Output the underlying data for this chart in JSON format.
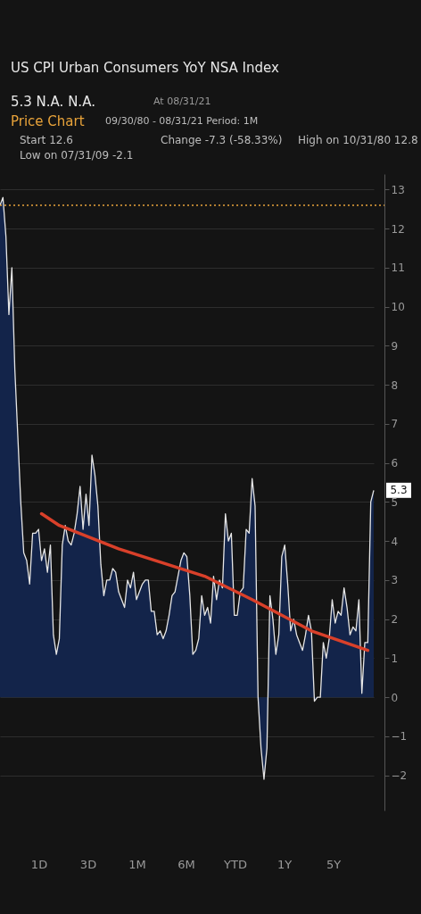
{
  "chart_data": {
    "type": "area",
    "title": "US CPI Urban Consumers YoY NSA Index",
    "subtitle": "5.3   N.A.   N.A.",
    "annotations": [
      "At 08/31/21",
      "Price Chart",
      "09/30/80 - 08/31/21   Period: 1M",
      "Start  12.6",
      "Change  -7.3 (-58.33%)",
      "High on 10/31/80  12.8",
      "Low on 07/31/09  -2.1",
      "5.3",
      "1D",
      "3D",
      "1M",
      "6M",
      "YTD",
      "1Y",
      "5Y"
    ],
    "categories": [
      null,
      null,
      null,
      null,
      null,
      null,
      null,
      null,
      null,
      null,
      null,
      null,
      null,
      null,
      null,
      null,
      null,
      null,
      null,
      null,
      null,
      null,
      null,
      null,
      null,
      null,
      null,
      null,
      null,
      null,
      null,
      null,
      null,
      null,
      null,
      null,
      null,
      null,
      null,
      null,
      null,
      null,
      null,
      null,
      null,
      null,
      null,
      null,
      null,
      null,
      null,
      null,
      null,
      null,
      null,
      null,
      null,
      null,
      null,
      null,
      null,
      null,
      null,
      null,
      null,
      null,
      null,
      null,
      null,
      null,
      null,
      null,
      null,
      null,
      null,
      null,
      null,
      null,
      null,
      null,
      null,
      null,
      null,
      null,
      null,
      null,
      null,
      null,
      null,
      null,
      null,
      null,
      null,
      null,
      null,
      null,
      null,
      null,
      null,
      null,
      null,
      null,
      null,
      null,
      null,
      null,
      null,
      null,
      null,
      null,
      null,
      null,
      null,
      null,
      null,
      null,
      null,
      null,
      null,
      null,
      null,
      null,
      null,
      null,
      null,
      null,
      null
    ],
    "series": [
      {
        "type": "area",
        "color": "#13244a",
        "values": [
          12.6,
          12.8,
          11.8,
          9.8,
          11.0,
          8.4,
          6.7,
          5.0,
          3.7,
          3.5,
          2.9,
          4.2,
          4.2,
          4.3,
          3.5,
          3.8,
          3.2,
          3.9,
          1.6,
          1.1,
          1.5,
          3.9,
          4.4,
          4.0,
          3.9,
          4.2,
          4.7,
          5.4,
          4.3,
          5.2,
          4.4,
          6.2,
          5.7,
          4.9,
          3.4,
          2.6,
          3.0,
          3.0,
          3.3,
          3.2,
          2.7,
          2.5,
          2.3,
          3.0,
          2.8,
          3.2,
          2.5,
          2.7,
          2.9,
          3.0,
          3.0,
          2.2,
          2.2,
          1.6,
          1.7,
          1.5,
          1.7,
          2.1,
          2.6,
          2.7,
          3.1,
          3.5,
          3.7,
          3.6,
          2.6,
          1.1,
          1.2,
          1.5,
          2.6,
          2.1,
          2.3,
          1.9,
          3.1,
          2.5,
          3.0,
          2.8,
          4.7,
          4.0,
          4.2,
          2.1,
          2.1,
          2.7,
          2.8,
          4.3,
          4.2,
          5.6,
          4.9,
          0.0,
          -1.3,
          -2.1,
          -1.3,
          2.6,
          2.0,
          1.1,
          1.6,
          3.6,
          3.9,
          2.9,
          1.7,
          2.0,
          1.6,
          1.4,
          1.2,
          1.6,
          2.1,
          1.7,
          -0.1,
          0.0,
          0.0,
          1.4,
          1.0,
          1.5,
          2.5,
          1.9,
          2.2,
          2.1,
          2.8,
          2.3,
          1.6,
          1.8,
          1.7,
          2.5,
          0.1,
          1.4,
          1.4,
          5.0,
          5.3
        ]
      },
      {
        "type": "line",
        "color": "#d9402a",
        "values": [
          null,
          null,
          null,
          null,
          null,
          null,
          null,
          null,
          null,
          null,
          null,
          null,
          null,
          null,
          4.7,
          null,
          null,
          null,
          null,
          null,
          4.4,
          null,
          null,
          null,
          null,
          null,
          null,
          null,
          null,
          null,
          null,
          null,
          null,
          null,
          null,
          null,
          null,
          null,
          null,
          null,
          3.8,
          null,
          null,
          null,
          null,
          null,
          null,
          null,
          null,
          null,
          null,
          null,
          null,
          null,
          null,
          null,
          null,
          null,
          null,
          null,
          null,
          null,
          null,
          null,
          null,
          null,
          null,
          null,
          null,
          3.1,
          null,
          null,
          null,
          null,
          null,
          null,
          null,
          null,
          null,
          null,
          null,
          null,
          null,
          null,
          null,
          2.5,
          null,
          null,
          null,
          null,
          null,
          null,
          null,
          null,
          null,
          null,
          null,
          null,
          null,
          null,
          null,
          null,
          null,
          null,
          null,
          1.7,
          null,
          null,
          null,
          null,
          null,
          null,
          null,
          null,
          null,
          null,
          null,
          null,
          null,
          null,
          null,
          null,
          null,
          null,
          1.2,
          null,
          null
        ]
      }
    ],
    "ylim": [
      -2.9,
      13.4
    ],
    "yticks": [
      -2,
      -1,
      0,
      1,
      2,
      3,
      4,
      5,
      6,
      7,
      8,
      9,
      10,
      11,
      12,
      13
    ],
    "grid": "y",
    "tick_labels": "y",
    "ref_lines": [
      {
        "axis": "y",
        "value": 12.6,
        "color": "#e8a33a",
        "line_style": "dotted"
      }
    ]
  }
}
